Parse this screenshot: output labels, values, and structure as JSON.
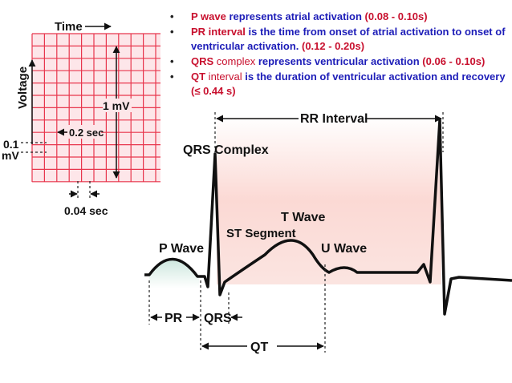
{
  "grid": {
    "time_label": "Time",
    "voltage_label": "Voltage",
    "mv_label": "1 mV",
    "sec02_label": "0.2 sec",
    "mv01_label_line1": "0.1",
    "mv01_label_line2": "mV",
    "sec004_label": "0.04 sec"
  },
  "bullets": [
    {
      "term": "P wave",
      "text": " represents atrial activation ",
      "value": "(0.08 - 0.10s)"
    },
    {
      "term": "PR interval",
      "text": " is the time from onset of atrial activation to onset of ventricular activation.",
      "value": " (0.12 - 0.20s)"
    },
    {
      "term": "QRS",
      "term2": " complex",
      "text": " represents ventricular activation ",
      "value": "(0.06 - 0.10s)"
    },
    {
      "term": "QT",
      "term2": " interval",
      "text": " is the duration of ventricular activation and recovery ",
      "value": "(≤ 0.44 s)"
    }
  ],
  "ecg": {
    "rr_interval": "RR Interval",
    "qrs_complex": "QRS Complex",
    "t_wave": "T Wave",
    "st_segment": "ST Segment",
    "p_wave": "P Wave",
    "u_wave": "U Wave",
    "pr": "PR",
    "qrs": "QRS",
    "qt": "QT"
  },
  "colors": {
    "grid_fill": "#fde6e9",
    "grid_line": "#e8364d",
    "bullet_term": "#c8102e",
    "bullet_text": "#1d1db8",
    "trace": "#111111"
  }
}
